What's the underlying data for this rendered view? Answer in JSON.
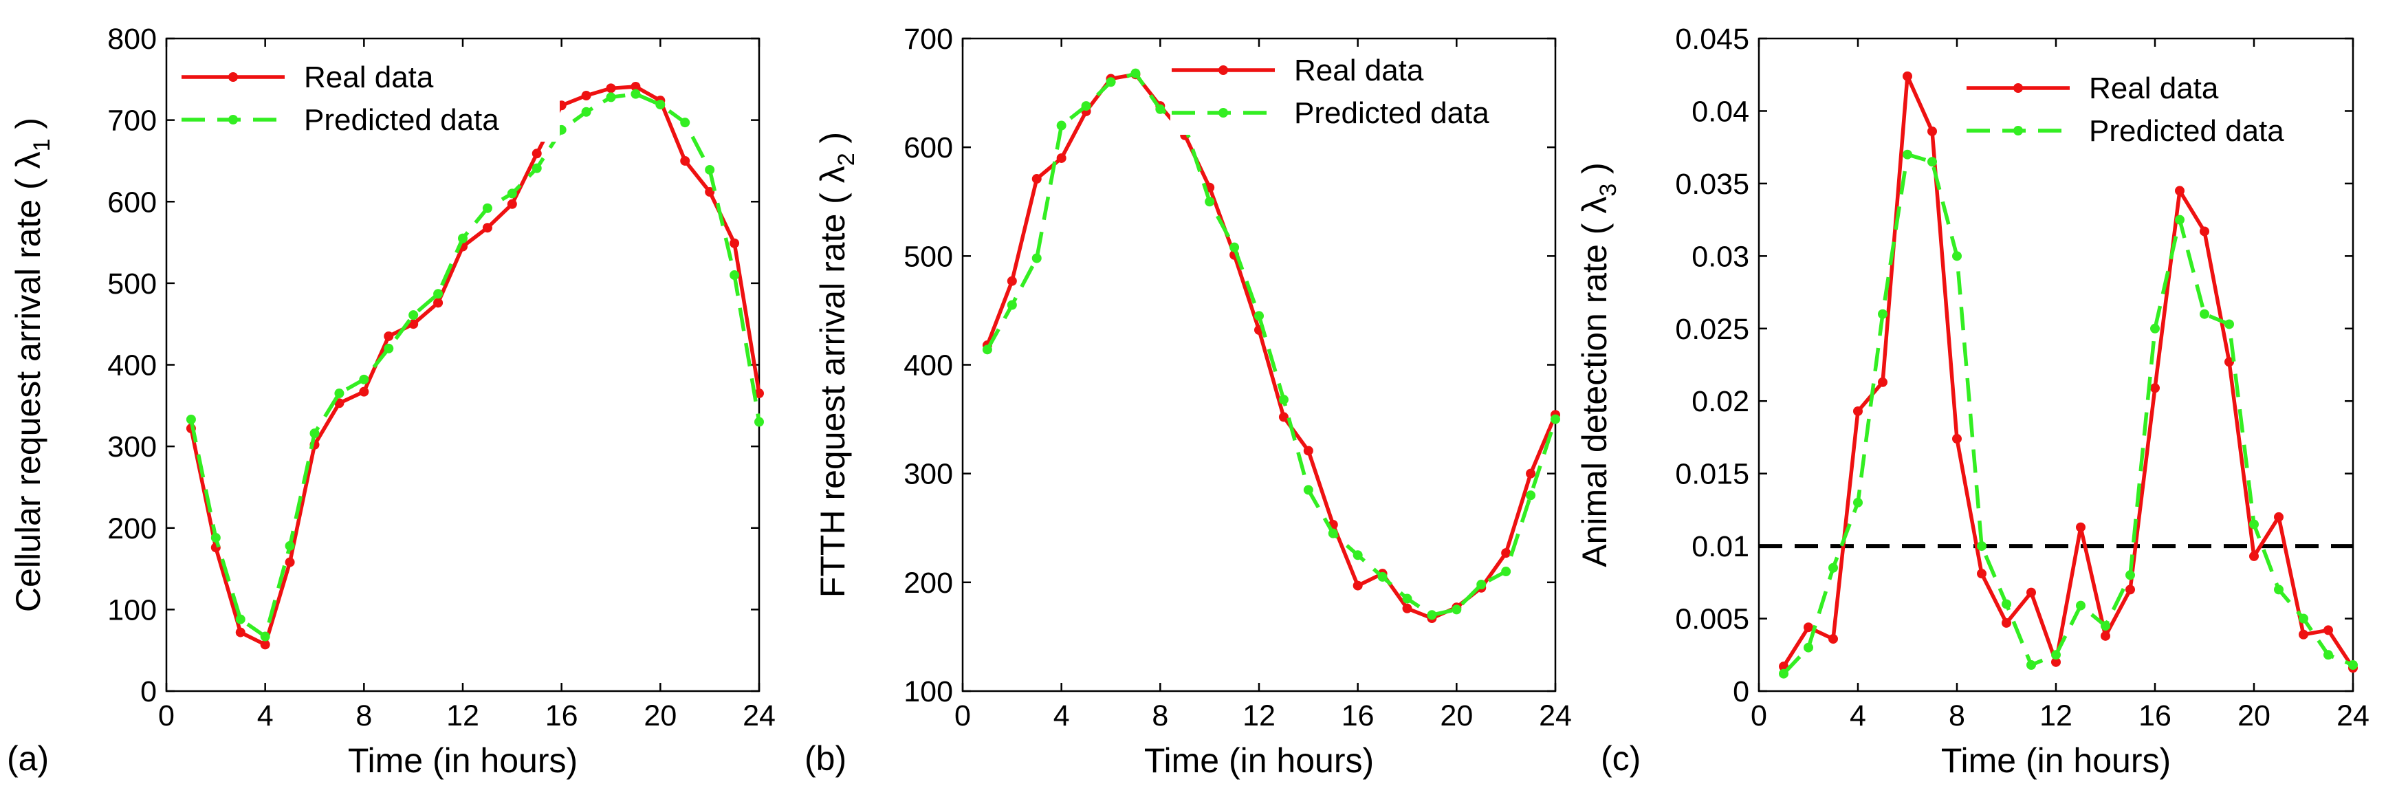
{
  "chart_data": [
    {
      "type": "line",
      "panel_label": "(a)",
      "xlabel": "Time (in hours)",
      "ylabel": "Cellular request arrival rate ( λ",
      "ylabel_sub": "1",
      "ylabel_close": ")",
      "xlim": [
        0,
        24
      ],
      "ylim": [
        0,
        800
      ],
      "xticks": [
        0,
        4,
        8,
        12,
        16,
        20,
        24
      ],
      "yticks": [
        0,
        100,
        200,
        300,
        400,
        500,
        600,
        700,
        800
      ],
      "ytick_labels": [
        "0",
        "100",
        "200",
        "300",
        "400",
        "500",
        "600",
        "700",
        "800"
      ],
      "legend_position": "top-left",
      "series": [
        {
          "name": "Real data",
          "color": "#ee1111",
          "style": "solid",
          "x": [
            1,
            2,
            3,
            4,
            5,
            6,
            7,
            8,
            9,
            10,
            11,
            12,
            13,
            14,
            15,
            16,
            17,
            18,
            19,
            20,
            21,
            22,
            23,
            24
          ],
          "y": [
            322,
            176,
            72,
            57,
            158,
            302,
            353,
            367,
            435,
            450,
            476,
            545,
            568,
            597,
            659,
            718,
            730,
            739,
            741,
            724,
            650,
            612,
            549,
            365
          ]
        },
        {
          "name": "Predicted data",
          "color": "#33ee22",
          "style": "dashed",
          "x": [
            1,
            2,
            3,
            4,
            5,
            6,
            7,
            8,
            9,
            10,
            11,
            12,
            13,
            14,
            15,
            16,
            17,
            18,
            19,
            20,
            21,
            22,
            23,
            24
          ],
          "y": [
            333,
            188,
            88,
            67,
            178,
            316,
            365,
            382,
            420,
            461,
            487,
            555,
            592,
            610,
            641,
            688,
            710,
            728,
            732,
            719,
            697,
            639,
            510,
            330
          ]
        }
      ]
    },
    {
      "type": "line",
      "panel_label": "(b)",
      "xlabel": "Time (in hours)",
      "ylabel": "FTTH request arrival rate ( λ",
      "ylabel_sub": "2",
      "ylabel_close": ")",
      "xlim": [
        0,
        24
      ],
      "ylim": [
        100,
        700
      ],
      "xticks": [
        0,
        4,
        8,
        12,
        16,
        20,
        24
      ],
      "yticks": [
        100,
        200,
        300,
        400,
        500,
        600,
        700
      ],
      "ytick_labels": [
        "100",
        "200",
        "300",
        "400",
        "500",
        "600",
        "700"
      ],
      "legend_position": "top-right",
      "series": [
        {
          "name": "Real data",
          "color": "#ee1111",
          "style": "solid",
          "x": [
            1,
            2,
            3,
            4,
            5,
            6,
            7,
            8,
            9,
            10,
            11,
            12,
            13,
            14,
            15,
            16,
            17,
            18,
            19,
            20,
            21,
            22,
            23,
            24
          ],
          "y": [
            418,
            477,
            571,
            590,
            633,
            663,
            667,
            638,
            611,
            563,
            501,
            432,
            352,
            321,
            253,
            197,
            208,
            176,
            167,
            177,
            195,
            227,
            300,
            354
          ]
        },
        {
          "name": "Predicted data",
          "color": "#33ee22",
          "style": "dashed",
          "x": [
            1,
            2,
            3,
            4,
            5,
            6,
            7,
            8,
            9,
            10,
            11,
            12,
            13,
            14,
            15,
            16,
            17,
            18,
            19,
            20,
            21,
            22,
            23,
            24
          ],
          "y": [
            414,
            455,
            498,
            620,
            638,
            660,
            668,
            635,
            620,
            550,
            508,
            445,
            368,
            285,
            245,
            225,
            205,
            185,
            170,
            175,
            198,
            210,
            280,
            350
          ]
        }
      ]
    },
    {
      "type": "line",
      "panel_label": "(c)",
      "xlabel": "Time (in hours)",
      "ylabel": "Animal detection rate ( λ",
      "ylabel_sub": "3",
      "ylabel_close": ")",
      "xlim": [
        0,
        24
      ],
      "ylim": [
        0,
        0.045
      ],
      "xticks": [
        0,
        4,
        8,
        12,
        16,
        20,
        24
      ],
      "yticks": [
        0,
        0.005,
        0.01,
        0.015,
        0.02,
        0.025,
        0.03,
        0.035,
        0.04,
        0.045
      ],
      "ytick_labels": [
        "0",
        "0.005",
        "0.01",
        "0.015",
        "0.02",
        "0.025",
        "0.03",
        "0.035",
        "0.04",
        "0.045"
      ],
      "threshold": 0.01,
      "threshold_color": "#000000",
      "legend_position": "top-right",
      "series": [
        {
          "name": "Real data",
          "color": "#ee1111",
          "style": "solid",
          "x": [
            1,
            2,
            3,
            4,
            5,
            6,
            7,
            8,
            9,
            10,
            11,
            12,
            13,
            14,
            15,
            16,
            17,
            18,
            19,
            20,
            21,
            22,
            23,
            24
          ],
          "y": [
            0.0017,
            0.0044,
            0.0036,
            0.0193,
            0.0213,
            0.0424,
            0.0386,
            0.0174,
            0.0081,
            0.0047,
            0.0068,
            0.002,
            0.0113,
            0.0038,
            0.007,
            0.0209,
            0.0345,
            0.0317,
            0.0227,
            0.0093,
            0.012,
            0.0039,
            0.0042,
            0.0016
          ]
        },
        {
          "name": "Predicted data",
          "color": "#33ee22",
          "style": "dashed",
          "x": [
            1,
            2,
            3,
            4,
            5,
            6,
            7,
            8,
            9,
            10,
            11,
            12,
            13,
            14,
            15,
            16,
            17,
            18,
            19,
            20,
            21,
            22,
            23,
            24
          ],
          "y": [
            0.0012,
            0.003,
            0.0085,
            0.013,
            0.026,
            0.037,
            0.0365,
            0.03,
            0.01,
            0.006,
            0.0018,
            0.0025,
            0.0059,
            0.0045,
            0.008,
            0.025,
            0.0325,
            0.026,
            0.0253,
            0.0115,
            0.007,
            0.005,
            0.0025,
            0.0018
          ]
        }
      ]
    }
  ]
}
